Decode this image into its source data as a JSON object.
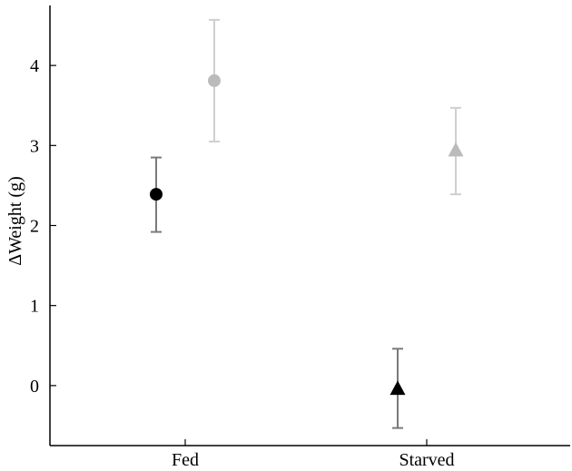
{
  "chart_data": {
    "type": "scatter",
    "categories": [
      "Fed",
      "Starved"
    ],
    "ylabel": "ΔWeight (g)",
    "xlabel": "",
    "title": "",
    "ylim": [
      -0.75,
      4.75
    ],
    "yticks": [
      0,
      1,
      2,
      3,
      4
    ],
    "grid": false,
    "series": [
      {
        "marker": "circle",
        "color": "#000000",
        "points": [
          {
            "category": "Fed",
            "y": 2.39,
            "err_low": 1.92,
            "err_high": 2.85
          }
        ]
      },
      {
        "marker": "circle",
        "color": "#bbbbbb",
        "points": [
          {
            "category": "Fed",
            "y": 3.81,
            "err_low": 3.05,
            "err_high": 4.57
          }
        ]
      },
      {
        "marker": "triangle",
        "color": "#000000",
        "points": [
          {
            "category": "Starved",
            "y": -0.04,
            "err_low": -0.53,
            "err_high": 0.46
          }
        ]
      },
      {
        "marker": "triangle",
        "color": "#bbbbbb",
        "points": [
          {
            "category": "Starved",
            "y": 2.94,
            "err_low": 2.39,
            "err_high": 3.47
          }
        ]
      }
    ]
  }
}
